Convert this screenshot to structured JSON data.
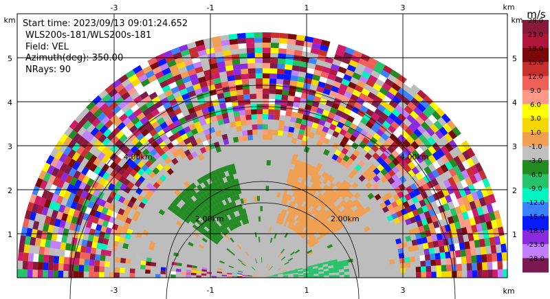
{
  "info": {
    "start_time": "Start time: 2023/09/13 09:01:24.652",
    "radar": "WLS200s-181/WLS200s-181",
    "field": "Field: VEL",
    "azimuth": "Azimuth(deg): 350.00",
    "nrays": "NRays: 90"
  },
  "axes": {
    "x_ticks": [
      "-3",
      "-1",
      "1",
      "3"
    ],
    "y_ticks": [
      "1",
      "2",
      "3",
      "4",
      "5"
    ],
    "unit": "km"
  },
  "range_rings": [
    "2.00km",
    "2.00km",
    "4.00km",
    "4.00km"
  ],
  "colorbar": {
    "title": "m/s",
    "labels": [
      "28.0",
      "23.0",
      "18.0",
      "15.0",
      "12.0",
      "9.0",
      "6.0",
      "3.0",
      "1.0",
      "-1.0",
      "-3.0",
      "-6.0",
      "-9.0",
      "-12.0",
      "-15.0",
      "-18.0",
      "-23.0",
      "-28.0"
    ],
    "colors": [
      "#8b1a3a",
      "#b0173a",
      "#7a0a0a",
      "#c83030",
      "#f0605a",
      "#ff9a88",
      "#ffff00",
      "#f6d800",
      "#f0a050",
      "#c0c0c0",
      "#228b22",
      "#27c36a",
      "#00f5c0",
      "#3a82ff",
      "#0a1aff",
      "#8a2be2",
      "#c080ff",
      "#7a1a50"
    ],
    "noise_colors": [
      "#8b1a3a",
      "#b0173a",
      "#7a0a0a",
      "#c83030",
      "#f0605a",
      "#ff9a88",
      "#ffff00",
      "#f6d800",
      "#f0a050",
      "#c0c0c0",
      "#228b22",
      "#27c36a",
      "#00f5c0",
      "#3a82ff",
      "#0a1aff",
      "#8a2be2",
      "#c080ff",
      "#7a1a50",
      "#d01a6a",
      "#ffffff"
    ]
  }
}
